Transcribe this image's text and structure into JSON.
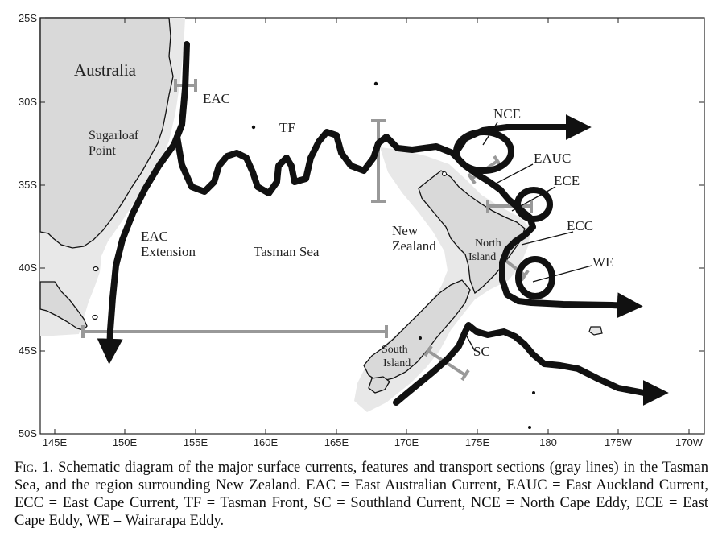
{
  "map": {
    "lat_labels": [
      "25S",
      "30S",
      "35S",
      "40S",
      "45S",
      "50S"
    ],
    "lon_labels": [
      "145E",
      "150E",
      "155E",
      "160E",
      "165E",
      "170E",
      "175E",
      "180",
      "175W",
      "170W"
    ],
    "colors": {
      "land": "#d9d9d9",
      "shelf": "#e8e8e8",
      "currents": "#111111",
      "sections": "#999999",
      "frame": "#222222"
    },
    "labels": {
      "australia": "Australia",
      "sugarloaf": [
        "Sugarloaf",
        "Point"
      ],
      "eac": "EAC",
      "eac_extension": [
        "EAC",
        "Extension"
      ],
      "tf": "TF",
      "tasman_sea": "Tasman Sea",
      "new_zealand": [
        "New",
        "Zealand"
      ],
      "north_island": [
        "North",
        "Island"
      ],
      "south_island": [
        "South",
        "Island"
      ],
      "nce": "NCE",
      "eauc": "EAUC",
      "ece": "ECE",
      "ecc": "ECC",
      "we": "WE",
      "sc": "SC"
    }
  },
  "caption": {
    "fig": "Fig. 1.",
    "text": " Schematic diagram of the major surface currents, features and transport sections (gray lines) in the Tasman Sea, and the region surrounding New Zealand. EAC = East Australian Current, EAUC = East Auckland Current, ECC = East Cape Current, TF = Tasman Front, SC = Southland Current, NCE = North Cape Eddy, ECE = East Cape Eddy, WE = Wairarapa Eddy."
  }
}
